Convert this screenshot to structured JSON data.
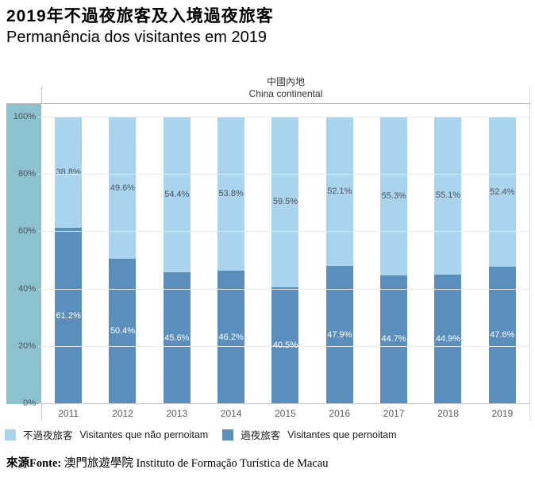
{
  "page": {
    "title_zh": "2019年不過夜旅客及入境過夜旅客",
    "title_pt": "Permanência dos visitantes em 2019"
  },
  "source": {
    "label": "來源Fonte:",
    "text": " 澳門旅遊學院 Instituto de Formação Turística de Macau"
  },
  "chart_data": {
    "type": "bar",
    "subtype": "100-percent-stacked-column",
    "panel_title_zh": "中國內地",
    "panel_title_en": "China continental",
    "categories": [
      "2011",
      "2012",
      "2013",
      "2014",
      "2015",
      "2016",
      "2017",
      "2018",
      "2019"
    ],
    "series": [
      {
        "name_zh": "不過夜旅客",
        "name_pt": "Visitantes que não pernoitam",
        "color": "#aad3ed",
        "label_color": "#4e5359",
        "values": [
          38.8,
          49.6,
          54.4,
          53.8,
          59.5,
          52.1,
          55.3,
          55.1,
          52.4
        ]
      },
      {
        "name_zh": "過夜旅客",
        "name_pt": "Visitantes que pernoitam",
        "color": "#5a8ebd",
        "label_color": "#ffffff",
        "values": [
          61.2,
          50.4,
          45.6,
          46.2,
          40.5,
          47.9,
          44.7,
          44.9,
          47.6
        ]
      }
    ],
    "y_ticks": [
      "100%",
      "80%",
      "60%",
      "40%",
      "20%",
      "0%"
    ],
    "ylim": [
      0,
      100
    ],
    "grid": true,
    "legend_position": "bottom",
    "axis_strip_color": "#8cc2cd"
  }
}
